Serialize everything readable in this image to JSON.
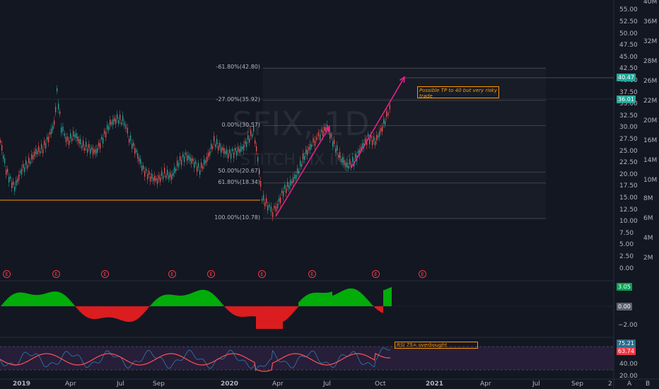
{
  "watermark": {
    "ticker": "SFIX, 1D",
    "company": "STITCH FIX INC"
  },
  "price_axis": {
    "ticks": [
      "55.00",
      "52.50",
      "50.00",
      "47.50",
      "45.00",
      "42.50",
      "40.00",
      "37.50",
      "35.00",
      "32.50",
      "30.00",
      "27.50",
      "25.00",
      "22.50",
      "20.00",
      "17.50",
      "15.00",
      "12.50",
      "10.00",
      "7.50",
      "5.00",
      "2.50",
      "0.00"
    ],
    "current_price": "40.47",
    "last_close": "36.01"
  },
  "volume_axis": {
    "ticks": [
      "40M",
      "36M",
      "32M",
      "28M",
      "26M",
      "22M",
      "20M",
      "16M",
      "14M",
      "10M",
      "8M",
      "6M",
      "4M",
      "2M"
    ]
  },
  "time_axis": {
    "labels": [
      "2019",
      "Apr",
      "Jul",
      "Sep",
      "2020",
      "Apr",
      "Jul",
      "Oct",
      "2021",
      "Apr",
      "Jul",
      "Sep",
      "2"
    ]
  },
  "fibonacci": [
    {
      "label": "-61.80%(42.80)",
      "price": 42.8
    },
    {
      "label": "-27.00%(35.92)",
      "price": 35.92
    },
    {
      "label": "0.00%(30.57)",
      "price": 30.57
    },
    {
      "label": "50.00%(20.67)",
      "price": 20.67
    },
    {
      "label": "61.80%(18.34)",
      "price": 18.34
    },
    {
      "label": "100.00%(10.78)",
      "price": 10.78
    }
  ],
  "annotations": {
    "tp_note": "Possible TP to 40 but very risky trade",
    "rsi_note": "RSI 75= overbought"
  },
  "earnings_marker": "E",
  "macd": {
    "value": "3.05",
    "zero": "0.00",
    "ticks": [
      "−2.00"
    ]
  },
  "rsi": {
    "value1": "75.21",
    "value2": "63.74",
    "ticks": [
      "40.00",
      "20.00"
    ]
  },
  "controls": {
    "auto": "A",
    "log": "B"
  },
  "colors": {
    "up": "#26a69a",
    "down": "#ef5350",
    "arrow": "#e91e8c",
    "orange": "#ff9800",
    "macd_up": "#00c805",
    "macd_down": "#ff1f1f",
    "rsi_line": "#2e7fb0",
    "rsi_ma": "#ff5252",
    "rsi_band": "#2a1f3d"
  }
}
